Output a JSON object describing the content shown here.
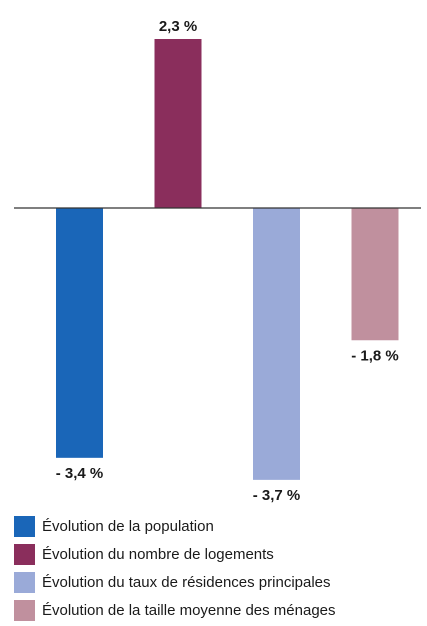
{
  "chart_data": {
    "type": "bar",
    "title": "",
    "xlabel": "",
    "ylabel": "",
    "ylim": [
      -3.7,
      2.3
    ],
    "grid": false,
    "legend_position": "bottom",
    "series": [
      {
        "name": "Évolution de la population",
        "value": -3.4,
        "label": "- 3,4 %",
        "color": "#1a66b8"
      },
      {
        "name": "Évolution du nombre de logements",
        "value": 2.3,
        "label": "2,3 %",
        "color": "#8a2e5c"
      },
      {
        "name": "Évolution du taux de résidences principales",
        "value": -3.7,
        "label": "- 3,7 %",
        "color": "#9aaad8"
      },
      {
        "name": "Évolution de la taille moyenne des ménages",
        "value": -1.8,
        "label": "- 1,8 %",
        "color": "#c0909e"
      }
    ]
  }
}
